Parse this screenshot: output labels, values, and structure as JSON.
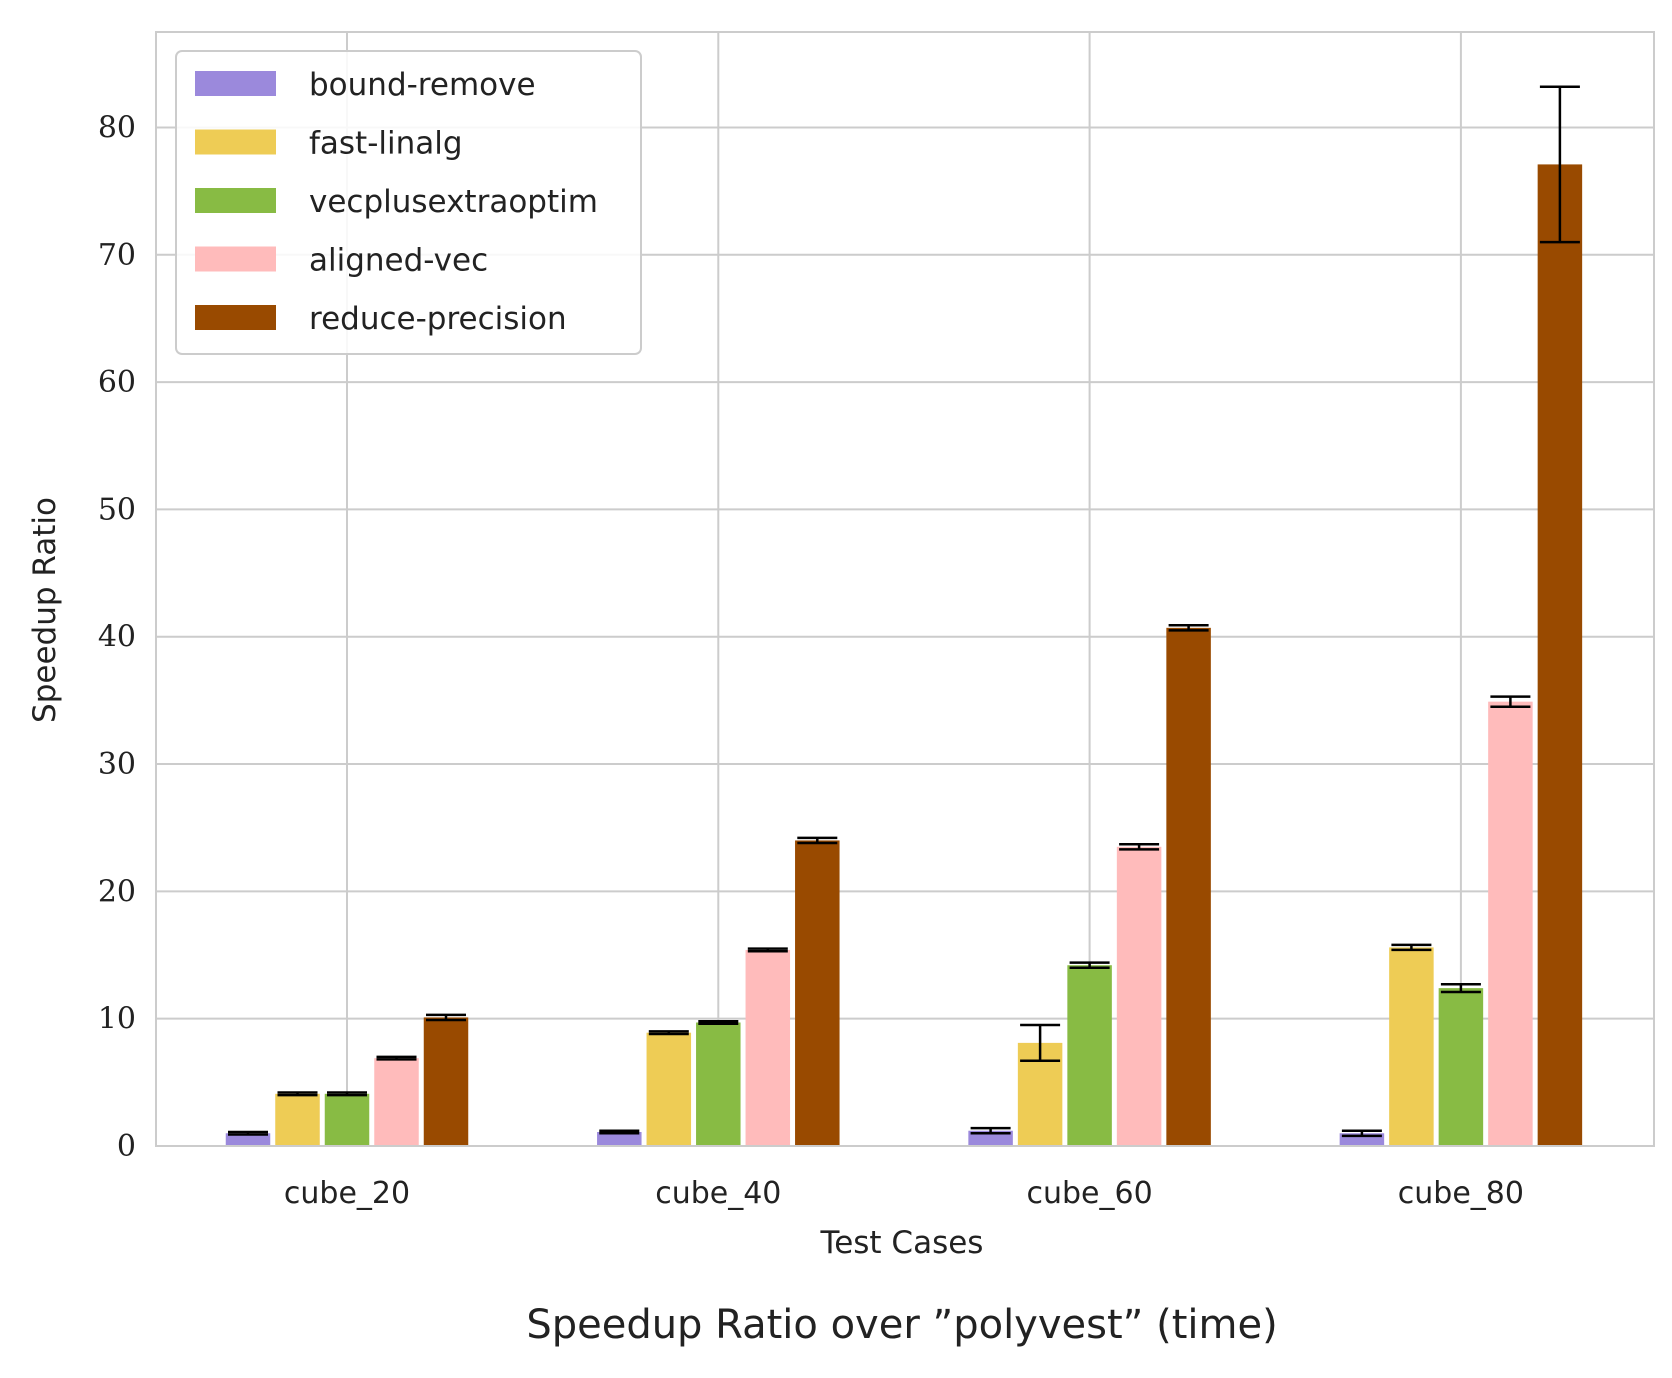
{
  "chart_data": {
    "type": "bar",
    "title": "Speedup Ratio over ”polyvest” (time)",
    "xlabel": "Test Cases",
    "ylabel": "Speedup Ratio",
    "categories": [
      "cube_20",
      "cube_40",
      "cube_60",
      "cube_80"
    ],
    "ylim": [
      0,
      87.5
    ],
    "yticks": [
      "0",
      "10",
      "20",
      "30",
      "40",
      "50",
      "60",
      "70",
      "80"
    ],
    "grid": true,
    "legend_position": "top-left",
    "series": [
      {
        "name": "bound-remove",
        "color": "#9b89dc",
        "values": [
          1.0,
          1.1,
          1.2,
          1.0
        ],
        "errors": [
          0.1,
          0.1,
          0.2,
          0.2
        ]
      },
      {
        "name": "fast-linalg",
        "color": "#eecc55",
        "values": [
          4.1,
          8.9,
          8.1,
          15.6
        ],
        "errors": [
          0.1,
          0.1,
          1.4,
          0.2
        ]
      },
      {
        "name": "vecplusextraoptim",
        "color": "#88bb44",
        "values": [
          4.1,
          9.7,
          14.2,
          12.4
        ],
        "errors": [
          0.1,
          0.1,
          0.2,
          0.3
        ]
      },
      {
        "name": "aligned-vec",
        "color": "#ffbbbb",
        "values": [
          6.9,
          15.4,
          23.5,
          34.9
        ],
        "errors": [
          0.1,
          0.1,
          0.2,
          0.4
        ]
      },
      {
        "name": "reduce-precision",
        "color": "#994a00",
        "values": [
          10.1,
          24.0,
          40.7,
          77.1
        ],
        "errors": [
          0.2,
          0.2,
          0.2,
          6.1
        ]
      }
    ]
  }
}
